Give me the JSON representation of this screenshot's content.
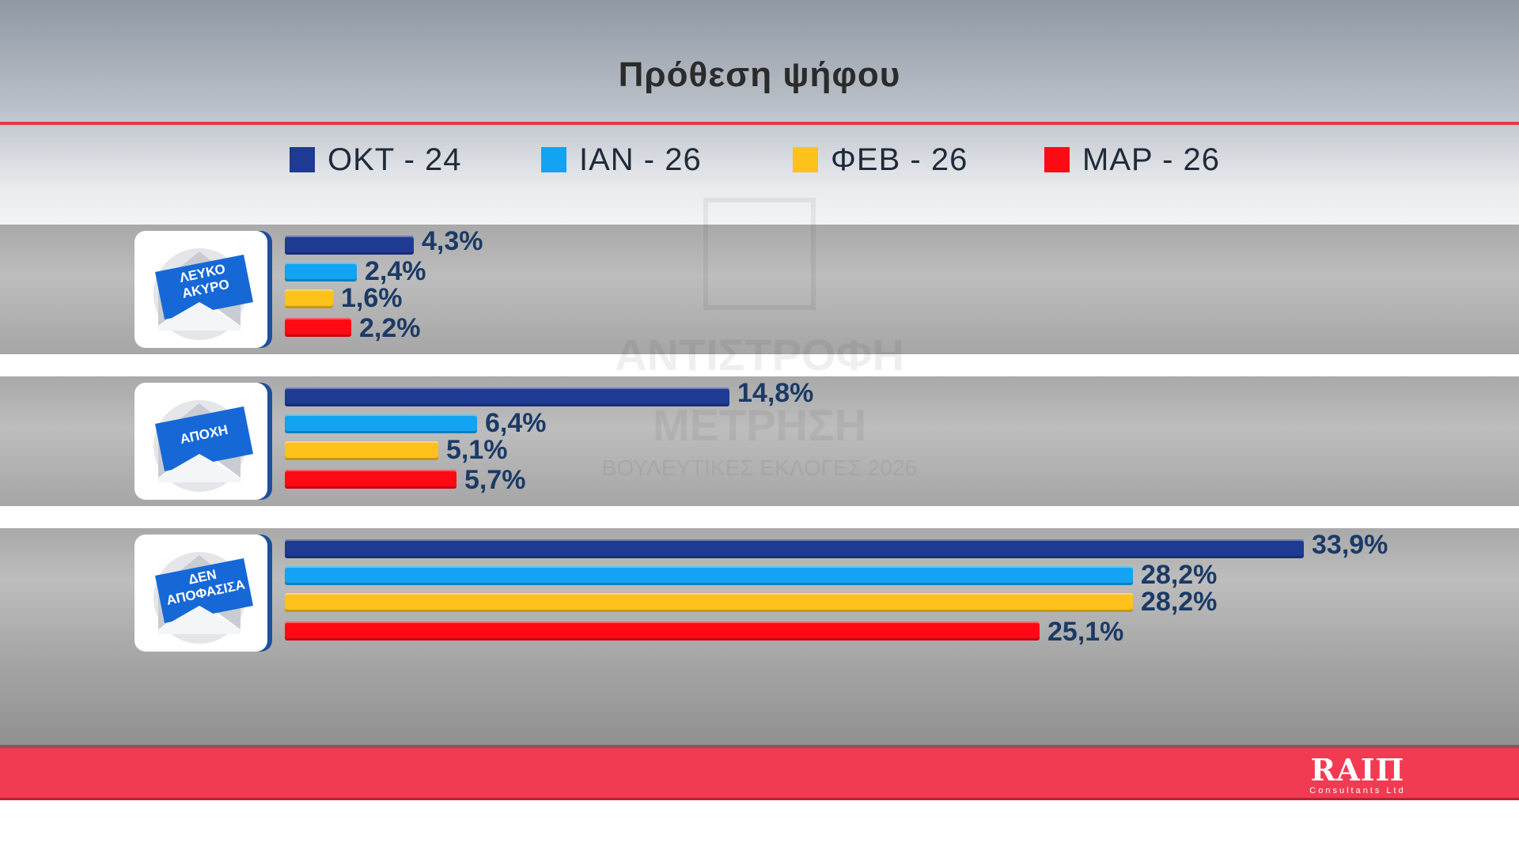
{
  "title": "Πρόθεση ψήφου",
  "colors": {
    "series": [
      "#1f3a93",
      "#12a4f3",
      "#ffc21a",
      "#ff0a14"
    ],
    "accent": "#f23a52",
    "value_text": "#1b3a66"
  },
  "legend": [
    {
      "label": "ΟΚΤ - 24"
    },
    {
      "label": "ΙΑΝ - 26"
    },
    {
      "label": "ΦΕΒ - 26"
    },
    {
      "label": "ΜΑΡ - 26"
    }
  ],
  "groups": [
    {
      "icon": "envelope-icon",
      "label_lines": [
        "ΛΕΥΚΟ",
        "ΑΚΥΡΟ"
      ]
    },
    {
      "icon": "envelope-icon",
      "label_lines": [
        "ΑΠΟΧΗ"
      ]
    },
    {
      "icon": "envelope-icon",
      "label_lines": [
        "ΔΕΝ",
        "ΑΠΟΦΑΣΙΣΑ"
      ]
    }
  ],
  "chart_data": {
    "type": "bar",
    "orientation": "horizontal",
    "title": "Πρόθεση ψήφου",
    "categories": [
      "ΛΕΥΚΟ ΑΚΥΡΟ",
      "ΑΠΟΧΗ",
      "ΔΕΝ ΑΠΟΦΑΣΙΣΑ"
    ],
    "series": [
      {
        "name": "ΟΚΤ - 24",
        "values": [
          4.3,
          14.8,
          33.9
        ],
        "labels": [
          "4,3%",
          "14,8%",
          "33,9%"
        ]
      },
      {
        "name": "ΙΑΝ - 26",
        "values": [
          2.4,
          6.4,
          28.2
        ],
        "labels": [
          "2,4%",
          "6,4%",
          "28,2%"
        ]
      },
      {
        "name": "ΦΕΒ - 26",
        "values": [
          1.6,
          5.1,
          28.2
        ],
        "labels": [
          "1,6%",
          "5,1%",
          "28,2%"
        ]
      },
      {
        "name": "ΜΑΡ - 26",
        "values": [
          2.2,
          5.7,
          25.1
        ],
        "labels": [
          "2,2%",
          "5,7%",
          "25,1%"
        ]
      }
    ],
    "unit": "%",
    "legend_position": "top",
    "grid": false
  },
  "watermark": {
    "line1": "ΑΝΤΙΣΤΡΟΦΗ",
    "line2": "ΜΕΤΡΗΣΗ",
    "line3": "ΒΟΥΛΕΥΤΙΚΕΣ ΕΚΛΟΓΕΣ 2026"
  },
  "footer": {
    "logo_text": "RAIΠ",
    "logo_sub": "Consultants Ltd"
  }
}
